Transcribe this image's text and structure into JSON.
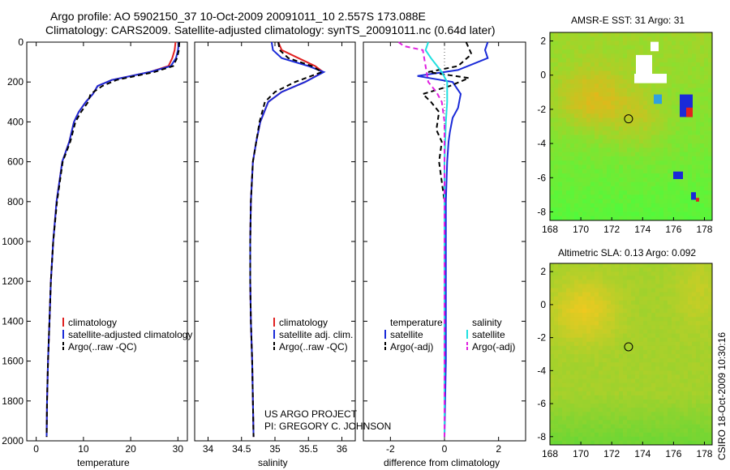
{
  "header": {
    "line1": "Argo profile: AO 5902150_37 10-Oct-2009 20091011_10 2.557S 173.088E",
    "line2": "Climatology: CARS2009. Satellite-adjusted climatology: synTS_20091011.nc (0.64d later)"
  },
  "project": {
    "line1": "US ARGO PROJECT",
    "line2": "PI: GREGORY C. JOHNSON"
  },
  "timestamp": "CSIRO 18-Oct-2009 10:30:16",
  "colors": {
    "climatology": "#e02020",
    "satellite": "#1a2ad8",
    "argo": "#000000",
    "salinity_satellite": "#20e0e0",
    "salinity_argo": "#e020e0"
  },
  "chart_data": [
    {
      "type": "line",
      "panel": "temperature",
      "xlabel": "temperature",
      "xlim": [
        -2,
        32
      ],
      "xticks": [
        "0",
        "10",
        "20",
        "30"
      ],
      "ylim": [
        2000,
        0
      ],
      "yticks": [
        "0",
        "200",
        "400",
        "600",
        "800",
        "1000",
        "1200",
        "1400",
        "1600",
        "1800",
        "2000"
      ],
      "legend": [
        "climatology",
        "satellite-adjusted climatology",
        "Argo(..raw -QC)"
      ],
      "series": [
        {
          "name": "climatology",
          "color": "#e02020",
          "dash": "",
          "x": [
            29.5,
            29.3,
            28.8,
            28.0,
            24.0,
            20.0,
            16.0,
            13.0,
            12.0,
            10.5,
            9.0,
            8.0,
            7.0,
            5.5,
            4.3,
            3.6,
            3.1,
            2.8,
            2.5,
            2.3,
            2.2
          ],
          "y": [
            0,
            40,
            80,
            120,
            150,
            170,
            190,
            220,
            260,
            300,
            350,
            400,
            500,
            600,
            800,
            1000,
            1200,
            1400,
            1600,
            1800,
            1980
          ]
        },
        {
          "name": "satellite-adjusted climatology",
          "color": "#1a2ad8",
          "dash": "",
          "x": [
            30.2,
            30.0,
            29.6,
            28.5,
            24.0,
            20.0,
            16.0,
            13.0,
            12.0,
            10.5,
            9.0,
            8.0,
            7.0,
            5.5,
            4.3,
            3.6,
            3.1,
            2.8,
            2.5,
            2.3,
            2.2
          ],
          "y": [
            0,
            40,
            80,
            120,
            150,
            170,
            190,
            220,
            260,
            300,
            350,
            400,
            500,
            600,
            800,
            1000,
            1200,
            1400,
            1600,
            1800,
            1980
          ]
        },
        {
          "name": "Argo(..raw -QC)",
          "color": "#000000",
          "dash": "6,4",
          "x": [
            30.3,
            30.2,
            29.8,
            29.0,
            25.0,
            21.0,
            17.0,
            14.0,
            11.5,
            11.0,
            9.5,
            8.3,
            7.2,
            5.6,
            4.4,
            3.6,
            3.1,
            2.8,
            2.5,
            2.3,
            2.2
          ],
          "y": [
            0,
            40,
            80,
            120,
            150,
            170,
            190,
            220,
            260,
            300,
            350,
            400,
            500,
            600,
            800,
            1000,
            1200,
            1400,
            1600,
            1800,
            1980
          ]
        }
      ]
    },
    {
      "type": "line",
      "panel": "salinity",
      "xlabel": "salinity",
      "xlim": [
        33.8,
        36.2
      ],
      "xticks": [
        "34",
        "34.5",
        "35",
        "35.5",
        "36"
      ],
      "ylim": [
        2000,
        0
      ],
      "legend": [
        "climatology",
        "satellite adj. clim.",
        "Argo(..raw -QC)"
      ],
      "series": [
        {
          "name": "climatology",
          "color": "#e02020",
          "dash": "",
          "x": [
            35.05,
            35.1,
            35.35,
            35.6,
            35.72,
            35.45,
            35.1,
            34.9,
            34.78,
            34.72,
            34.67,
            34.64,
            34.63,
            34.63,
            34.64,
            34.66,
            34.67,
            34.68
          ],
          "y": [
            0,
            40,
            80,
            120,
            150,
            200,
            250,
            300,
            400,
            500,
            600,
            800,
            1000,
            1200,
            1400,
            1600,
            1800,
            1980
          ]
        },
        {
          "name": "satellite adj. clim.",
          "color": "#1a2ad8",
          "dash": "",
          "x": [
            34.95,
            34.97,
            35.1,
            35.5,
            35.73,
            35.45,
            35.1,
            34.9,
            34.78,
            34.72,
            34.67,
            34.64,
            34.63,
            34.63,
            34.64,
            34.66,
            34.67,
            34.68
          ],
          "y": [
            0,
            40,
            80,
            120,
            150,
            200,
            250,
            300,
            400,
            500,
            600,
            800,
            1000,
            1200,
            1400,
            1600,
            1800,
            1980
          ]
        },
        {
          "name": "Argo(..raw -QC)",
          "color": "#000000",
          "dash": "6,4",
          "x": [
            35.05,
            35.07,
            35.2,
            35.55,
            35.7,
            35.3,
            35.0,
            34.85,
            34.77,
            34.72,
            34.67,
            34.64,
            34.63,
            34.63,
            34.64,
            34.66,
            34.67,
            34.68
          ],
          "y": [
            0,
            40,
            80,
            120,
            150,
            200,
            250,
            300,
            400,
            500,
            600,
            800,
            1000,
            1200,
            1400,
            1600,
            1800,
            1980
          ]
        }
      ]
    },
    {
      "type": "line",
      "panel": "difference",
      "xlabel": "difference from climatology",
      "xlim": [
        -3,
        3
      ],
      "xticks": [
        "-2",
        "0",
        "2"
      ],
      "ylim": [
        2000,
        0
      ],
      "legend_temperature": [
        "temperature",
        "satellite",
        "Argo(-adj)"
      ],
      "legend_salinity": [
        "salinity",
        "satellite",
        "Argo(-adj)"
      ],
      "series": [
        {
          "name": "temperature satellite",
          "color": "#1a2ad8",
          "dash": "",
          "x": [
            1.6,
            1.5,
            1.6,
            0.5,
            -1.0,
            0.3,
            0.6,
            0.5,
            0.3,
            0.2,
            0.15,
            0.1,
            0.05,
            0.05,
            0.05,
            0.0
          ],
          "y": [
            0,
            40,
            80,
            140,
            170,
            200,
            260,
            330,
            380,
            450,
            500,
            600,
            800,
            1200,
            1600,
            1980
          ]
        },
        {
          "name": "temperature Argo(-adj)",
          "color": "#000000",
          "dash": "6,4",
          "x": [
            0.8,
            1.0,
            0.5,
            -0.6,
            0.9,
            0.2,
            -0.8,
            -0.5,
            -0.2,
            -0.3,
            -0.1,
            -0.2,
            0.0,
            0.0,
            0.0,
            0.0
          ],
          "y": [
            0,
            60,
            120,
            150,
            180,
            220,
            260,
            300,
            350,
            440,
            500,
            600,
            800,
            1000,
            1500,
            1980
          ]
        },
        {
          "name": "salinity satellite",
          "color": "#20e0e0",
          "dash": "",
          "x": [
            -0.6,
            -0.7,
            -0.5,
            -0.1,
            0.1,
            0.1,
            0.05,
            0.0,
            0.0,
            0.0,
            0.0,
            0.0
          ],
          "y": [
            0,
            40,
            80,
            150,
            200,
            300,
            400,
            600,
            800,
            1200,
            1600,
            1980
          ]
        },
        {
          "name": "salinity Argo(-adj)",
          "color": "#e020e0",
          "dash": "6,4",
          "x": [
            -1.7,
            -1.5,
            -0.8,
            -0.6,
            -0.3,
            -0.1,
            0.0,
            0.0,
            0.0,
            0.0
          ],
          "y": [
            0,
            20,
            40,
            200,
            250,
            300,
            400,
            800,
            1400,
            1980
          ]
        }
      ]
    },
    {
      "type": "heatmap",
      "panel": "sst",
      "title": "AMSR-E SST: 31 Argo: 31",
      "xlim": [
        168,
        178.5
      ],
      "ylim": [
        -8.5,
        2.5
      ],
      "xticks": [
        "168",
        "170",
        "172",
        "174",
        "176",
        "178"
      ],
      "yticks": [
        "2",
        "0",
        "-2",
        "-4",
        "-6",
        "-8"
      ],
      "argo_position": {
        "lon": 173.088,
        "lat": -2.557
      }
    },
    {
      "type": "heatmap",
      "panel": "sla",
      "title": "Altimetric SLA: 0.13 Argo: 0.092",
      "xlim": [
        168,
        178.5
      ],
      "ylim": [
        -8.5,
        2.5
      ],
      "xticks": [
        "168",
        "170",
        "172",
        "174",
        "176",
        "178"
      ],
      "yticks": [
        "2",
        "0",
        "-2",
        "-4",
        "-6",
        "-8"
      ],
      "argo_position": {
        "lon": 173.088,
        "lat": -2.557
      }
    }
  ]
}
